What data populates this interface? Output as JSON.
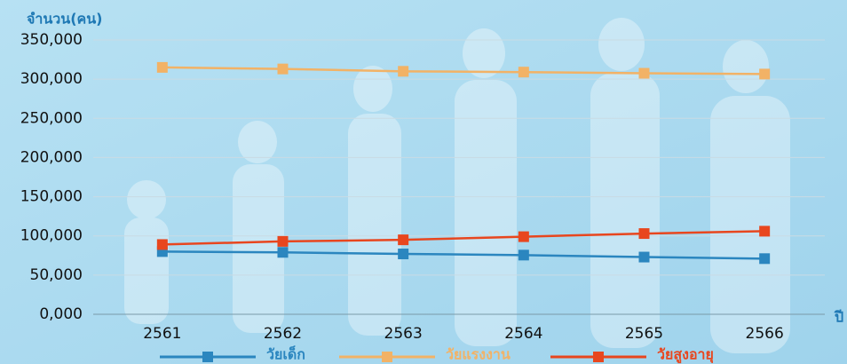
{
  "chart_data": {
    "type": "line",
    "y_axis_label": "จำนวน(คน)",
    "x_axis_label": "ปี",
    "categories": [
      "2561",
      "2562",
      "2563",
      "2564",
      "2565",
      "2566"
    ],
    "series": [
      {
        "name": "วัยเด็ก",
        "color": "#2b86bf",
        "values": [
          80000,
          79000,
          77000,
          75500,
          73000,
          71000
        ]
      },
      {
        "name": "วัยแรงงาน",
        "color": "#f2b266",
        "values": [
          315000,
          313000,
          310000,
          309000,
          307500,
          306500
        ]
      },
      {
        "name": "วัยสูงอายุ",
        "color": "#e8461e",
        "values": [
          89000,
          93000,
          95000,
          99000,
          103000,
          106000
        ]
      }
    ],
    "ylim": [
      0,
      350000
    ],
    "yticks": [
      {
        "value": 0,
        "label": "0,000"
      },
      {
        "value": 50000,
        "label": "50,000"
      },
      {
        "value": 100000,
        "label": "100,000"
      },
      {
        "value": 150000,
        "label": "150,000"
      },
      {
        "value": 200000,
        "label": "200,000"
      },
      {
        "value": 250000,
        "label": "250,000"
      },
      {
        "value": 300000,
        "label": "300,000"
      },
      {
        "value": 350000,
        "label": "350,000"
      }
    ],
    "grid": true
  }
}
